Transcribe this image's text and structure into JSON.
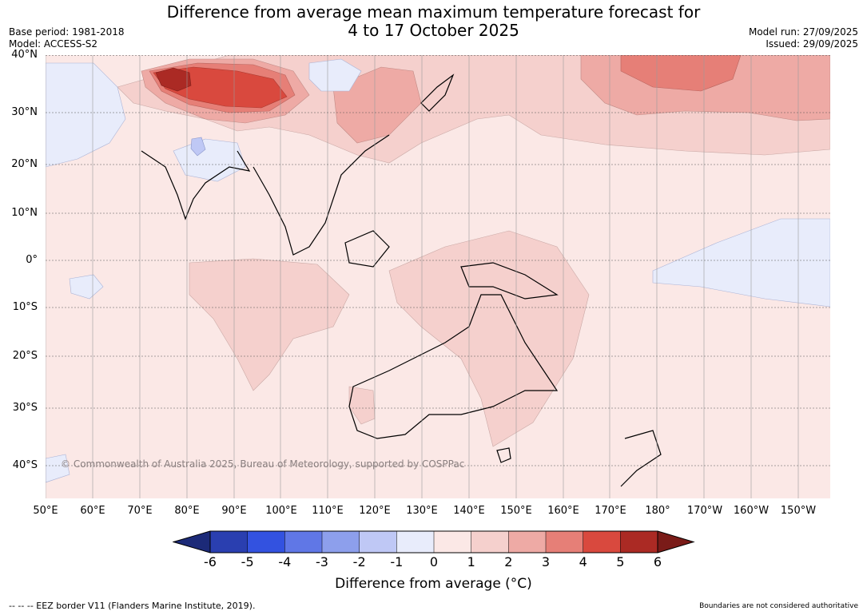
{
  "title_line1": "Difference from average mean maximum temperature forecast for",
  "title_line2": "4 to 17 October 2025",
  "meta_left": {
    "base_period": "Base period: 1981-2018",
    "model": "Model: ACCESS-S2"
  },
  "meta_right": {
    "model_run": "Model run: 27/09/2025",
    "issued": "Issued: 29/09/2025"
  },
  "lat_labels": [
    "40°N",
    "30°N",
    "20°N",
    "10°N",
    "0°",
    "10°S",
    "20°S",
    "30°S",
    "40°S"
  ],
  "lon_labels": [
    "50°E",
    "60°E",
    "70°E",
    "80°E",
    "90°E",
    "100°E",
    "110°E",
    "120°E",
    "130°E",
    "140°E",
    "150°E",
    "160°E",
    "170°E",
    "180°",
    "170°W",
    "160°W",
    "150°W"
  ],
  "colorbar": {
    "ticks": [
      "-6",
      "-5",
      "-4",
      "-3",
      "-2",
      "-1",
      "0",
      "1",
      "2",
      "3",
      "4",
      "5",
      "6"
    ],
    "colors": [
      "#1c2a78",
      "#2a3fb0",
      "#3352e0",
      "#6077e6",
      "#8d9fec",
      "#bfc8f5",
      "#e8ecfb",
      "#fbe8e6",
      "#f5d0cd",
      "#eeaaa5",
      "#e67f77",
      "#d9493e",
      "#ab2a24",
      "#7a1b18"
    ],
    "title": "Difference from average (°C)"
  },
  "copyright": "© Commonwealth of Australia 2025, Bureau of Meteorology, supported by COSPPac",
  "footer_left": "--  --  -- EEZ border V11 (Flanders Marine Institute, 2019).",
  "footer_right": "Boundaries are not considered authoritative"
}
